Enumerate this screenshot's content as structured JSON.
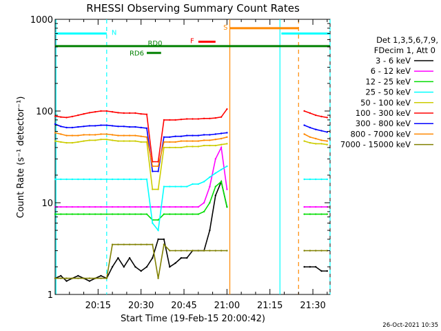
{
  "chart_data": {
    "type": "line",
    "title": "RHESSI Observing Summary Count Rates",
    "xlabel": "Start Time (19-Feb-15 20:00:42)",
    "ylabel": "Count Rate (s⁻¹ detector⁻¹)",
    "ylog": true,
    "ylim": [
      1,
      1000
    ],
    "xlim_minutes": [
      0,
      96
    ],
    "x_ticks": [
      "20:15",
      "20:30",
      "20:45",
      "21:00",
      "21:15",
      "21:30"
    ],
    "x_tick_minutes": [
      15,
      30,
      45,
      60,
      75,
      90
    ],
    "y_ticks": [
      "1",
      "10",
      "100",
      "1000"
    ],
    "y_tick_values": [
      1,
      10,
      100,
      1000
    ],
    "legend": {
      "placement": "right",
      "header1": "Det 1,3,5,6,7,9,",
      "header2": "FDecim 1, Att 0"
    },
    "x": [
      0,
      2,
      4,
      6,
      8,
      10,
      12,
      14,
      16,
      18,
      20,
      22,
      24,
      26,
      28,
      30,
      32,
      34,
      36,
      38,
      40,
      42,
      44,
      46,
      48,
      50,
      52,
      54,
      56,
      58,
      60,
      87,
      89,
      91,
      93,
      95
    ],
    "series": [
      {
        "name": "3 - 6 keV",
        "color": "#000000",
        "values": [
          1.5,
          1.6,
          1.4,
          1.5,
          1.6,
          1.5,
          1.4,
          1.5,
          1.6,
          1.5,
          2.0,
          2.5,
          2.0,
          2.5,
          2.0,
          1.8,
          2.0,
          2.5,
          4.0,
          4.0,
          2.0,
          2.2,
          2.5,
          2.5,
          3.0,
          3.0,
          3.0,
          5.0,
          12,
          17,
          9,
          2.0,
          2.0,
          2.0,
          1.8,
          1.8
        ]
      },
      {
        "name": "6 - 12 keV",
        "color": "#ff00ff",
        "values": [
          9,
          9,
          9,
          9,
          9,
          9,
          9,
          9,
          9,
          9,
          9,
          9,
          9,
          9,
          9,
          9,
          9,
          9,
          9,
          9,
          9,
          9,
          9,
          9,
          9,
          9,
          10,
          15,
          30,
          40,
          14,
          9,
          9,
          9,
          9,
          9
        ]
      },
      {
        "name": "12 - 25 keV",
        "color": "#00dd00",
        "values": [
          7.5,
          7.5,
          7.5,
          7.5,
          7.5,
          7.5,
          7.5,
          7.5,
          7.5,
          7.5,
          7.5,
          7.5,
          7.5,
          7.5,
          7.5,
          7.5,
          7.5,
          6.5,
          6.5,
          7.5,
          7.5,
          7.5,
          7.5,
          7.5,
          7.5,
          7.5,
          8,
          10,
          15,
          17,
          9,
          7.5,
          7.5,
          7.5,
          7.5,
          7.5
        ]
      },
      {
        "name": "25 - 50 keV",
        "color": "#00ffff",
        "values": [
          18,
          18,
          18,
          18,
          18,
          18,
          18,
          18,
          18,
          18,
          18,
          18,
          18,
          18,
          18,
          18,
          18,
          6,
          5,
          15,
          15,
          15,
          15,
          15,
          16,
          16,
          17,
          19,
          21,
          23,
          25,
          18,
          18,
          18,
          18,
          18
        ]
      },
      {
        "name": "50 - 100 keV",
        "color": "#cccc00",
        "values": [
          47,
          46,
          45,
          45,
          46,
          47,
          48,
          48,
          49,
          49,
          48,
          47,
          47,
          47,
          47,
          46,
          46,
          14,
          14,
          40,
          40,
          40,
          40,
          41,
          41,
          41,
          42,
          42,
          42,
          43,
          44,
          47,
          45,
          44,
          44,
          43
        ]
      },
      {
        "name": "100 - 300 keV",
        "color": "#ff0000",
        "values": [
          88,
          86,
          85,
          87,
          90,
          93,
          96,
          98,
          100,
          100,
          98,
          96,
          95,
          95,
          95,
          93,
          92,
          28,
          28,
          80,
          80,
          80,
          81,
          82,
          82,
          82,
          83,
          83,
          84,
          86,
          105,
          100,
          95,
          90,
          87,
          85
        ]
      },
      {
        "name": "300 - 800 keV",
        "color": "#0000ff",
        "values": [
          72,
          68,
          66,
          66,
          67,
          68,
          69,
          69,
          70,
          70,
          69,
          68,
          68,
          67,
          67,
          66,
          65,
          22,
          22,
          52,
          52,
          53,
          53,
          54,
          54,
          54,
          55,
          55,
          56,
          57,
          58,
          70,
          66,
          63,
          61,
          59
        ]
      },
      {
        "name": "800 - 7000 keV",
        "color": "#ff8800",
        "values": [
          58,
          56,
          54,
          54,
          54,
          55,
          55,
          55,
          56,
          56,
          55,
          54,
          54,
          54,
          54,
          53,
          52,
          25,
          25,
          46,
          46,
          46,
          47,
          47,
          47,
          47,
          48,
          48,
          49,
          50,
          52,
          56,
          52,
          50,
          48,
          47
        ]
      },
      {
        "name": "7000 - 15000 keV",
        "color": "#808000",
        "values": [
          1.5,
          1.5,
          1.5,
          1.5,
          1.5,
          1.5,
          1.5,
          1.5,
          1.5,
          1.5,
          3.5,
          3.5,
          3.5,
          3.5,
          3.5,
          3.5,
          3.5,
          3.5,
          1.5,
          3.5,
          3.0,
          3.0,
          3.0,
          3.0,
          3.0,
          3.0,
          3.0,
          3.0,
          3.0,
          3.0,
          3.0,
          3.0,
          3.0,
          3.0,
          3.0,
          3.0
        ]
      }
    ],
    "annotations": [
      {
        "label": "N",
        "color": "#00ffff",
        "y": 700,
        "x_start": 0,
        "x_end": 18
      },
      {
        "label": "",
        "color": "#00ffff",
        "y": 700,
        "x_start": 79,
        "x_end": 96
      },
      {
        "label": "S",
        "color": "#ff8800",
        "y": 800,
        "x_start": 61,
        "x_end": 85
      },
      {
        "label": "F",
        "color": "#ff0000",
        "y": 570,
        "x_start": 50,
        "x_end": 56
      },
      {
        "label": "RD0",
        "color": "#008000",
        "y": 510,
        "x_start": 0,
        "x_end": 96
      },
      {
        "label": "RD6",
        "color": "#008000",
        "y": 430,
        "x_start": 32,
        "x_end": 37
      }
    ],
    "vlines": [
      {
        "x": 0.3,
        "color": "#00ffff",
        "style": "solid"
      },
      {
        "x": 18,
        "color": "#00ffff",
        "style": "dashed"
      },
      {
        "x": 61,
        "color": "#ff8800",
        "style": "solid"
      },
      {
        "x": 78.5,
        "color": "#00ffff",
        "style": "solid"
      },
      {
        "x": 85,
        "color": "#ff8800",
        "style": "dashed"
      },
      {
        "x": 96,
        "color": "#00ffff",
        "style": "dashed"
      }
    ],
    "gaps": [
      [
        60.5,
        86.5
      ]
    ]
  },
  "footer": {
    "timestamp": "26-Oct-2021 10:35"
  }
}
